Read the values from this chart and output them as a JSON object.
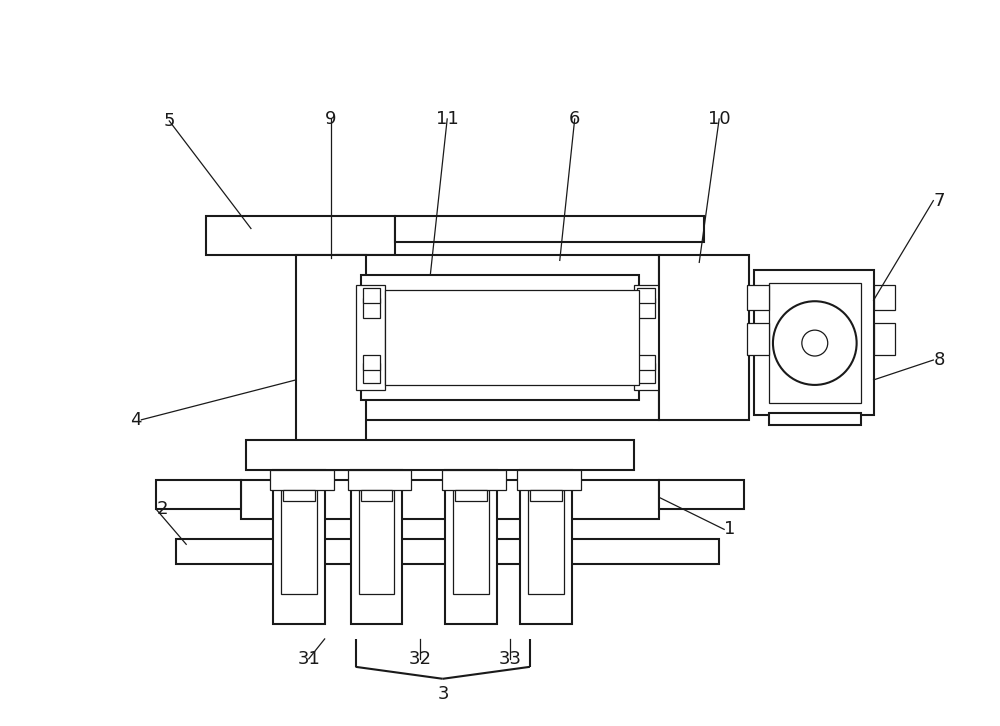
{
  "bg_color": "#ffffff",
  "lc": "#1a1a1a",
  "lw": 1.5,
  "tlw": 0.9,
  "fs": 13
}
